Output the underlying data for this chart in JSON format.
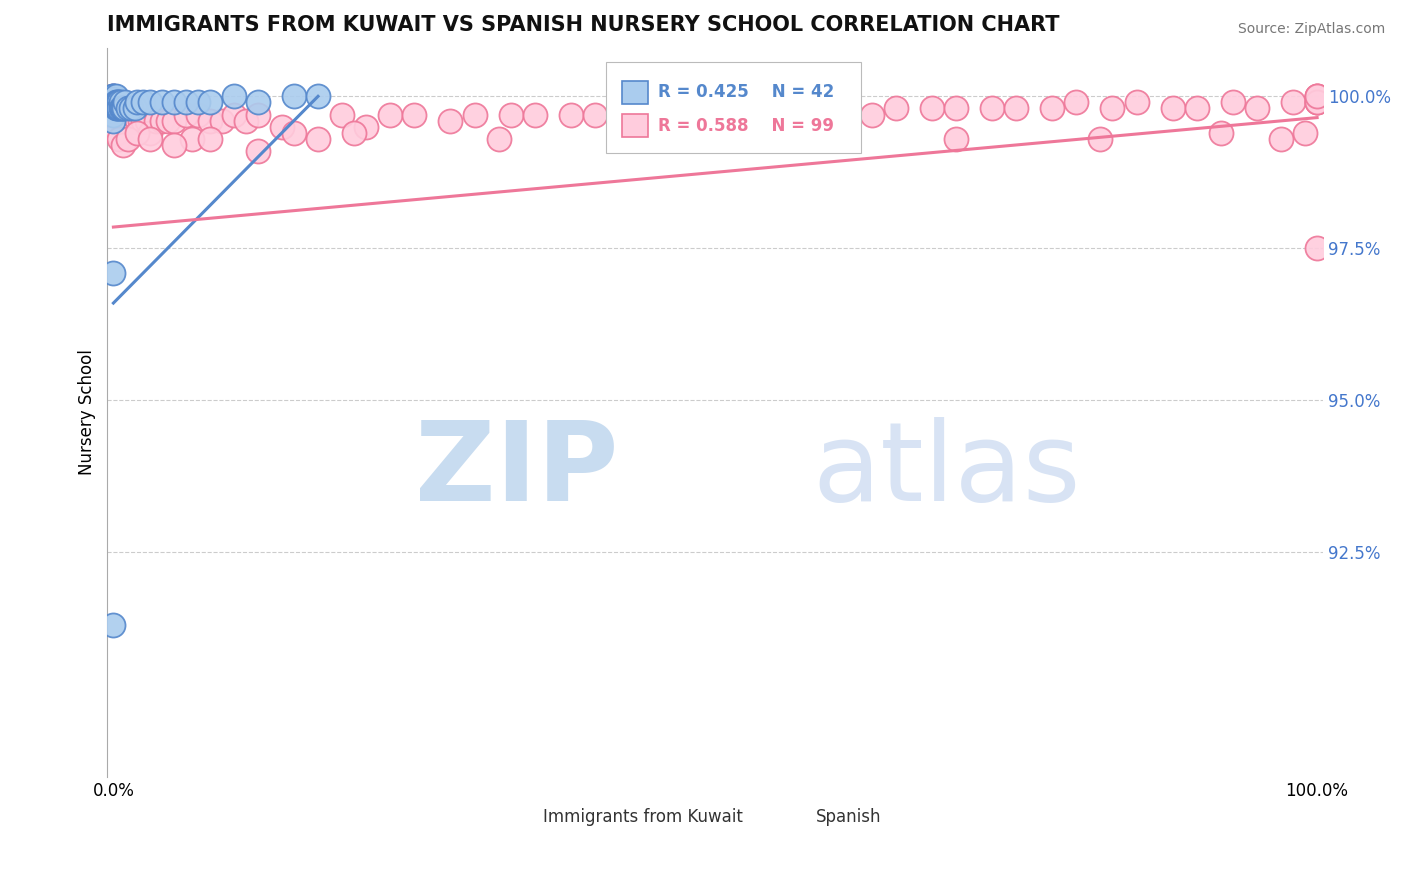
{
  "title": "IMMIGRANTS FROM KUWAIT VS SPANISH NURSERY SCHOOL CORRELATION CHART",
  "source": "Source: ZipAtlas.com",
  "ylabel": "Nursery School",
  "xlim": [
    -0.005,
    1.005
  ],
  "ylim": [
    0.888,
    1.008
  ],
  "yticks": [
    0.925,
    0.95,
    0.975,
    1.0
  ],
  "ytick_labels": [
    "92.5%",
    "95.0%",
    "97.5%",
    "100.0%"
  ],
  "blue_color": "#5588CC",
  "pink_color": "#EE7799",
  "blue_fill": "#AACCEE",
  "pink_fill": "#FFCCDD",
  "legend_blue_R": "R = 0.425",
  "legend_blue_N": "N = 42",
  "legend_pink_R": "R = 0.588",
  "legend_pink_N": "N = 99",
  "blue_x": [
    0.0,
    0.0,
    0.0,
    0.0,
    0.0,
    0.0,
    0.0,
    0.0,
    0.0,
    0.0,
    0.002,
    0.002,
    0.002,
    0.003,
    0.003,
    0.004,
    0.004,
    0.005,
    0.005,
    0.006,
    0.006,
    0.007,
    0.008,
    0.009,
    0.01,
    0.012,
    0.015,
    0.018,
    0.02,
    0.025,
    0.03,
    0.04,
    0.05,
    0.06,
    0.07,
    0.08,
    0.1,
    0.12,
    0.15,
    0.17,
    0.0,
    0.0
  ],
  "blue_y": [
    1.0,
    1.0,
    1.0,
    0.9995,
    0.999,
    0.999,
    0.998,
    0.998,
    0.997,
    0.996,
    1.0,
    0.999,
    0.998,
    0.999,
    0.998,
    0.999,
    0.998,
    0.999,
    0.998,
    0.999,
    0.998,
    0.998,
    0.998,
    0.998,
    0.999,
    0.998,
    0.998,
    0.998,
    0.999,
    0.999,
    0.999,
    0.999,
    0.999,
    0.999,
    0.999,
    0.999,
    1.0,
    0.999,
    1.0,
    1.0,
    0.971,
    0.913
  ],
  "pink_x": [
    0.0,
    0.0,
    0.001,
    0.001,
    0.002,
    0.002,
    0.003,
    0.003,
    0.004,
    0.005,
    0.006,
    0.007,
    0.008,
    0.009,
    0.01,
    0.011,
    0.012,
    0.014,
    0.015,
    0.016,
    0.018,
    0.02,
    0.022,
    0.025,
    0.028,
    0.03,
    0.035,
    0.04,
    0.045,
    0.05,
    0.06,
    0.065,
    0.07,
    0.08,
    0.09,
    0.1,
    0.11,
    0.12,
    0.14,
    0.15,
    0.17,
    0.19,
    0.21,
    0.23,
    0.25,
    0.28,
    0.3,
    0.33,
    0.35,
    0.38,
    0.4,
    0.43,
    0.45,
    0.48,
    0.5,
    0.53,
    0.55,
    0.58,
    0.6,
    0.63,
    0.65,
    0.68,
    0.7,
    0.73,
    0.75,
    0.78,
    0.8,
    0.83,
    0.85,
    0.88,
    0.9,
    0.93,
    0.95,
    0.98,
    1.0,
    1.0,
    1.0,
    1.0,
    1.0,
    1.0,
    0.003,
    0.005,
    0.008,
    0.012,
    0.02,
    0.03,
    0.05,
    0.08,
    0.12,
    0.2,
    0.32,
    0.45,
    0.58,
    0.7,
    0.82,
    0.92,
    0.97,
    0.99,
    1.0
  ],
  "pink_y": [
    1.0,
    0.999,
    0.999,
    0.998,
    0.999,
    0.997,
    0.998,
    0.997,
    0.997,
    0.997,
    0.996,
    0.997,
    0.996,
    0.997,
    0.997,
    0.996,
    0.997,
    0.996,
    0.997,
    0.996,
    0.996,
    0.996,
    0.996,
    0.996,
    0.996,
    0.994,
    0.996,
    0.996,
    0.996,
    0.996,
    0.997,
    0.993,
    0.997,
    0.996,
    0.996,
    0.997,
    0.996,
    0.997,
    0.995,
    0.994,
    0.993,
    0.997,
    0.995,
    0.997,
    0.997,
    0.996,
    0.997,
    0.997,
    0.997,
    0.997,
    0.997,
    0.997,
    0.998,
    0.997,
    0.997,
    0.997,
    0.998,
    0.997,
    0.998,
    0.997,
    0.998,
    0.998,
    0.998,
    0.998,
    0.998,
    0.998,
    0.999,
    0.998,
    0.999,
    0.998,
    0.998,
    0.999,
    0.998,
    0.999,
    1.0,
    0.999,
    0.999,
    1.0,
    0.999,
    1.0,
    0.994,
    0.993,
    0.992,
    0.993,
    0.994,
    0.993,
    0.992,
    0.993,
    0.991,
    0.994,
    0.993,
    0.994,
    0.993,
    0.993,
    0.993,
    0.994,
    0.993,
    0.994,
    0.975
  ],
  "blue_trendline": [
    [
      0.0,
      0.17
    ],
    [
      0.966,
      1.0
    ]
  ],
  "pink_trendline": [
    [
      0.0,
      1.0
    ],
    [
      0.9785,
      0.9965
    ]
  ]
}
